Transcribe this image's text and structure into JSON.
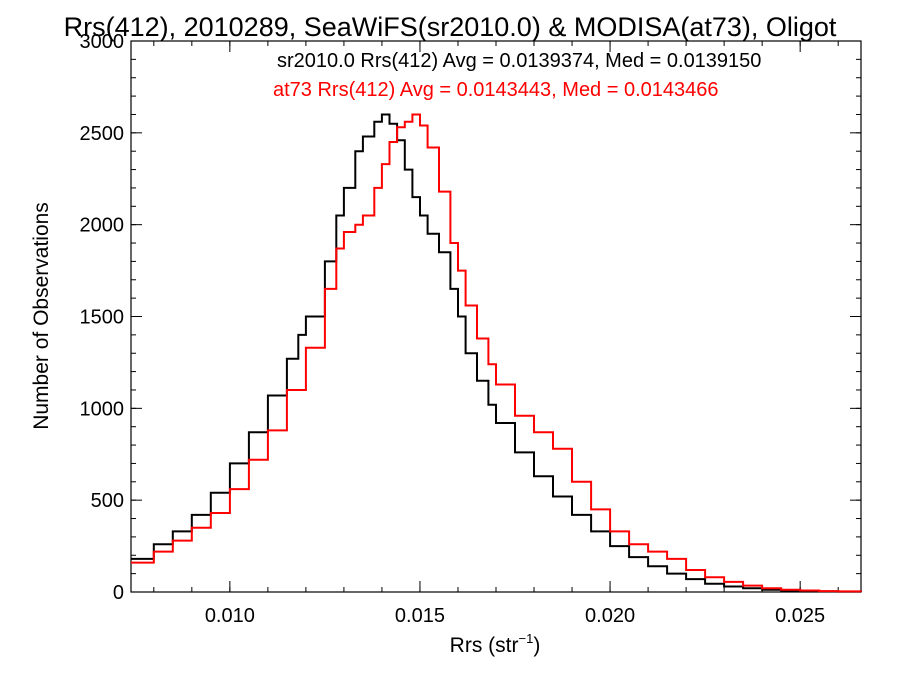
{
  "chart_data": {
    "type": "line",
    "title": "Rrs(412), 2010289, SeaWiFS(sr2010.0) & MODISA(at73), Oligot",
    "xlabel_main": "Rrs (str",
    "xlabel_sup": "−1",
    "xlabel_tail": ")",
    "ylabel": "Number of Observations",
    "xlim": [
      0.0074,
      0.0266
    ],
    "ylim": [
      0,
      3000
    ],
    "x_ticks": [
      0.01,
      0.015,
      0.02,
      0.025
    ],
    "x_tick_labels": [
      "0.010",
      "0.015",
      "0.020",
      "0.025"
    ],
    "y_ticks": [
      0,
      500,
      1000,
      1500,
      2000,
      2500,
      3000
    ],
    "y_tick_labels": [
      "0",
      "500",
      "1000",
      "1500",
      "2000",
      "2500",
      "3000"
    ],
    "grid": false,
    "legend_position": "top-right",
    "series": [
      {
        "name": "sr2010.0",
        "color": "#000000",
        "legend_text": "sr2010.0 Rrs(412) Avg = 0.0139374, Med = 0.0139150",
        "x": [
          0.0074,
          0.008,
          0.0085,
          0.009,
          0.0095,
          0.01,
          0.0105,
          0.011,
          0.0115,
          0.0118,
          0.012,
          0.0125,
          0.0128,
          0.013,
          0.0133,
          0.0135,
          0.0138,
          0.014,
          0.0142,
          0.0144,
          0.0146,
          0.0148,
          0.015,
          0.0152,
          0.0155,
          0.0158,
          0.016,
          0.0162,
          0.0165,
          0.0168,
          0.017,
          0.0175,
          0.018,
          0.0185,
          0.019,
          0.0195,
          0.02,
          0.0205,
          0.021,
          0.0215,
          0.022,
          0.0225,
          0.023,
          0.0235,
          0.024,
          0.0245,
          0.025,
          0.0255,
          0.026,
          0.0266
        ],
        "y": [
          180,
          260,
          330,
          420,
          540,
          700,
          870,
          1070,
          1270,
          1400,
          1500,
          1800,
          2050,
          2200,
          2400,
          2480,
          2560,
          2600,
          2550,
          2460,
          2300,
          2150,
          2050,
          1950,
          1850,
          1650,
          1500,
          1300,
          1150,
          1020,
          920,
          760,
          630,
          520,
          420,
          330,
          250,
          190,
          140,
          100,
          70,
          45,
          30,
          20,
          12,
          8,
          5,
          3,
          2,
          1
        ]
      },
      {
        "name": "at73",
        "color": "#ff0000",
        "legend_text": "at73 Rrs(412) Avg = 0.0143443, Med = 0.0143466",
        "x": [
          0.0074,
          0.008,
          0.0085,
          0.009,
          0.0095,
          0.01,
          0.0105,
          0.011,
          0.0115,
          0.012,
          0.0125,
          0.0128,
          0.013,
          0.0133,
          0.0135,
          0.0138,
          0.014,
          0.0142,
          0.0144,
          0.0146,
          0.0148,
          0.015,
          0.0152,
          0.0155,
          0.0158,
          0.016,
          0.0162,
          0.0165,
          0.0168,
          0.017,
          0.0175,
          0.018,
          0.0185,
          0.019,
          0.0195,
          0.02,
          0.0205,
          0.021,
          0.0215,
          0.022,
          0.0225,
          0.023,
          0.0235,
          0.024,
          0.0245,
          0.025,
          0.0255,
          0.026,
          0.0266
        ],
        "y": [
          160,
          220,
          280,
          350,
          430,
          560,
          720,
          880,
          1100,
          1330,
          1650,
          1870,
          1960,
          2000,
          2050,
          2200,
          2330,
          2450,
          2530,
          2560,
          2600,
          2540,
          2420,
          2180,
          1900,
          1750,
          1560,
          1380,
          1240,
          1130,
          960,
          870,
          780,
          600,
          450,
          330,
          260,
          220,
          180,
          120,
          80,
          55,
          35,
          20,
          12,
          8,
          5,
          3,
          2
        ]
      }
    ]
  }
}
